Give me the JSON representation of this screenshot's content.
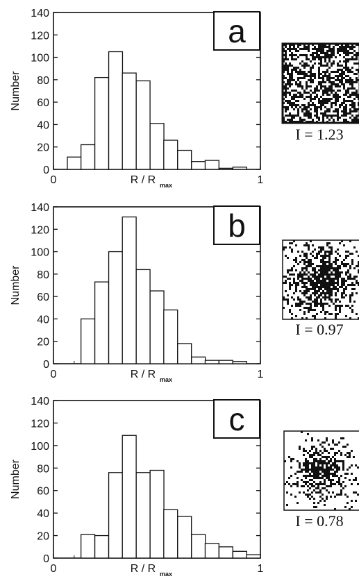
{
  "chart_data": [
    {
      "type": "bar",
      "panel_label": "a",
      "ylabel": "Number",
      "xlabel": "R / R",
      "xlabel_sub": "max",
      "xlim": [
        0,
        1
      ],
      "ylim": [
        0,
        140
      ],
      "x_ticks": [
        "0",
        "1"
      ],
      "y_ticks": [
        "0",
        "20",
        "40",
        "60",
        "80",
        "100",
        "120",
        "140"
      ],
      "bin_width": 0.0667,
      "bin_starts": [
        0.067,
        0.133,
        0.2,
        0.267,
        0.333,
        0.4,
        0.467,
        0.533,
        0.6,
        0.667,
        0.733,
        0.8,
        0.867
      ],
      "values": [
        11,
        22,
        82,
        105,
        86,
        79,
        41,
        26,
        17,
        7,
        8,
        1,
        2
      ],
      "inset_caption": "I = 1.23",
      "inset_shape": "square-fill"
    },
    {
      "type": "bar",
      "panel_label": "b",
      "ylabel": "Number",
      "xlabel": "R / R",
      "xlabel_sub": "max",
      "xlim": [
        0,
        1
      ],
      "ylim": [
        0,
        140
      ],
      "x_ticks": [
        "0",
        "1"
      ],
      "y_ticks": [
        "0",
        "20",
        "40",
        "60",
        "80",
        "100",
        "120",
        "140"
      ],
      "bin_width": 0.0667,
      "bin_starts": [
        0.133,
        0.2,
        0.267,
        0.333,
        0.4,
        0.467,
        0.533,
        0.6,
        0.667,
        0.733,
        0.8,
        0.867
      ],
      "values": [
        40,
        73,
        100,
        131,
        84,
        65,
        48,
        18,
        6,
        3,
        3,
        2
      ],
      "inset_caption": "I = 0.97",
      "inset_shape": "diffuse-cloud"
    },
    {
      "type": "bar",
      "panel_label": "c",
      "ylabel": "Number",
      "xlabel": "R / R",
      "xlabel_sub": "max",
      "xlim": [
        0,
        1
      ],
      "ylim": [
        0,
        140
      ],
      "x_ticks": [
        "0",
        "1"
      ],
      "y_ticks": [
        "0",
        "20",
        "40",
        "60",
        "80",
        "100",
        "120",
        "140"
      ],
      "bin_width": 0.0667,
      "bin_starts": [
        0.133,
        0.2,
        0.267,
        0.333,
        0.4,
        0.467,
        0.533,
        0.6,
        0.667,
        0.733,
        0.8,
        0.867,
        0.933
      ],
      "values": [
        21,
        20,
        76,
        109,
        76,
        78,
        43,
        37,
        21,
        13,
        10,
        6,
        3
      ],
      "inset_caption": "I = 0.78",
      "inset_shape": "compact-cloud"
    }
  ]
}
